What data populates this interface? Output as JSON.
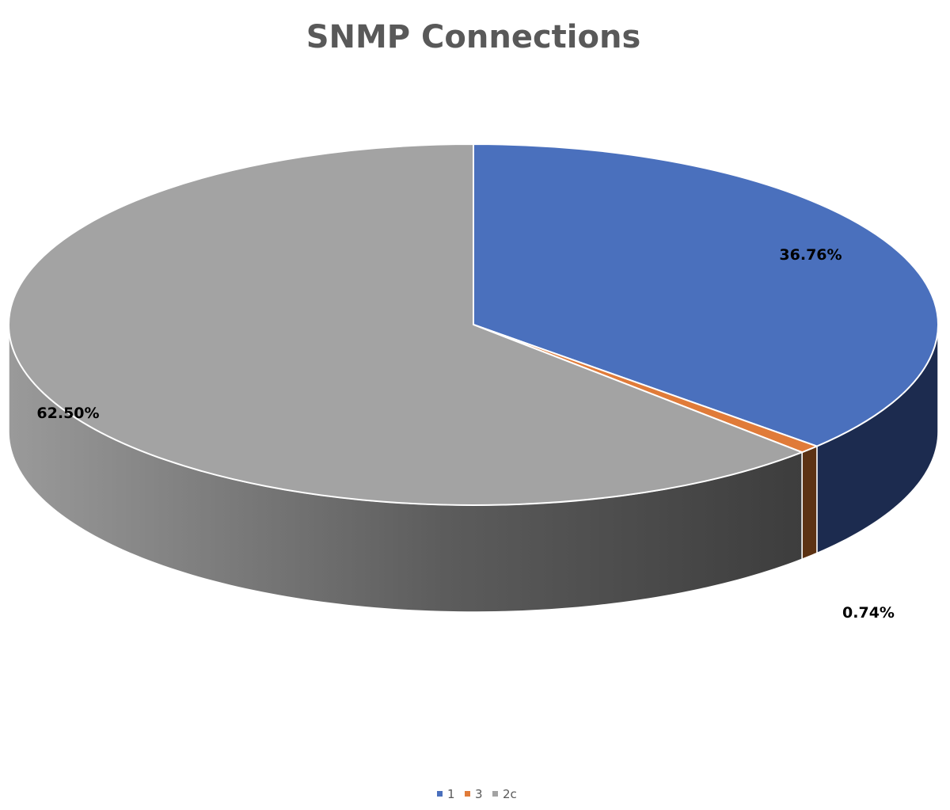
{
  "chart_data": {
    "type": "pie",
    "title": "SNMP Connections",
    "categories": [
      "1",
      "3",
      "2c"
    ],
    "values": [
      36.76,
      0.74,
      62.5
    ],
    "labels": [
      "36.76%",
      "0.74%",
      "62.50%"
    ],
    "legend_position": "bottom",
    "style": "3d",
    "colors": {
      "1": "#4A70BD",
      "3": "#E07B39",
      "2c": "#A3A3A3"
    },
    "side_colors": {
      "1": "#1C2B4F",
      "3": "#5C3213",
      "2c": "#6E6E6E"
    }
  }
}
